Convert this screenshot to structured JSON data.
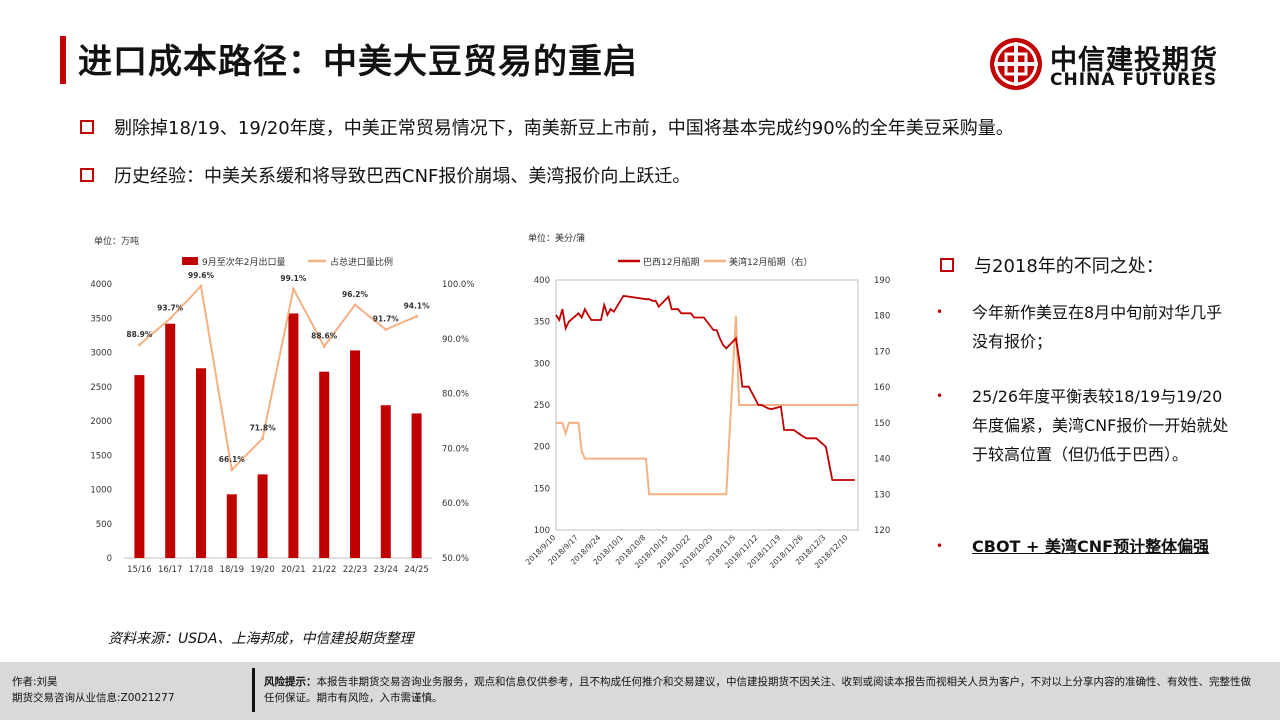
{
  "header": {
    "title": "进口成本路径：中美大豆贸易的重启",
    "logo_cn": "中信建投期货",
    "logo_en": "CHINA FUTURES"
  },
  "bullets": [
    "剔除掉18/19、19/20年度，中美正常贸易情况下，南美新豆上市前，中国将基本完成约90%的全年美豆采购量。",
    "历史经验：中美关系缓和将导致巴西CNF报价崩塌、美湾报价向上跃迁。"
  ],
  "side": {
    "title": "与2018年的不同之处：",
    "items": [
      "今年新作美豆在8月中旬前对华几乎没有报价；",
      "25/26年度平衡表较18/19与19/20年度偏紧，美湾CNF报价一开始就处于较高位置（但仍低于巴西）。",
      "CBOT + 美湾CNF预计整体偏强"
    ]
  },
  "source": "资料来源：USDA、上海邦成，中信建投期货整理",
  "footer": {
    "author": "作者:刘昊",
    "license": "期货交易咨询从业信息:Z0021277",
    "risk_label": "风险提示：",
    "risk_text": "本报告非期货交易咨询业务服务，观点和信息仅供参考，且不构成任何推介和交易建议，中信建投期货不因关注、收到或阅读本报告而视相关人员为客户，不对以上分享内容的准确性、有效性、完整性做任何保证。期市有风险，入市需谨慎。"
  },
  "colors": {
    "accent": "#c00000",
    "line_light": "#f4b183"
  },
  "chart_data": [
    {
      "type": "bar",
      "unit_label": "单位：万吨",
      "categories": [
        "15/16",
        "16/17",
        "17/18",
        "18/19",
        "19/20",
        "20/21",
        "21/22",
        "22/23",
        "23/24",
        "24/25"
      ],
      "series": [
        {
          "name": "9月至次年2月出口量",
          "type": "bar",
          "axis": "left",
          "values": [
            2670,
            3420,
            2770,
            930,
            1220,
            3570,
            2720,
            3030,
            2230,
            2110
          ]
        },
        {
          "name": "占总进口量比例",
          "type": "line",
          "axis": "right",
          "values": [
            88.9,
            93.7,
            99.6,
            66.1,
            71.8,
            99.1,
            88.6,
            96.2,
            91.7,
            94.1
          ],
          "labels": [
            "88.9%",
            "93.7%",
            "99.6%",
            "66.1%",
            "71.8%",
            "99.1%",
            "88.6%",
            "96.2%",
            "91.7%",
            "94.1%"
          ]
        }
      ],
      "ylim": [
        0,
        4000
      ],
      "yticks": [
        "0",
        "500",
        "1000",
        "1500",
        "2000",
        "2500",
        "3000",
        "3500",
        "4000"
      ],
      "y2lim": [
        50,
        100
      ],
      "y2ticks": [
        "50.0%",
        "60.0%",
        "70.0%",
        "80.0%",
        "90.0%",
        "100.0%"
      ],
      "legend_position": "top"
    },
    {
      "type": "line",
      "unit_label": "单位：美分/蒲",
      "xlim": [
        "2018-09-10",
        "2018-12-13"
      ],
      "xticks": [
        "2018/9/10",
        "2018/9/17",
        "2018/9/24",
        "2018/10/1",
        "2018/10/8",
        "2018/10/15",
        "2018/10/22",
        "2018/10/29",
        "2018/11/5",
        "2018/11/12",
        "2018/11/19",
        "2018/11/26",
        "2018/12/3",
        "2018/12/10"
      ],
      "ylim": [
        100,
        400
      ],
      "yticks": [
        "100",
        "150",
        "200",
        "250",
        "300",
        "350",
        "400"
      ],
      "y2lim": [
        120,
        190
      ],
      "y2ticks": [
        "120",
        "130",
        "140",
        "150",
        "160",
        "170",
        "180",
        "190"
      ],
      "legend_position": "top",
      "series": [
        {
          "name": "巴西12月船期",
          "axis": "left",
          "x": [
            "2018-09-10",
            "2018-09-11",
            "2018-09-12",
            "2018-09-13",
            "2018-09-14",
            "2018-09-17",
            "2018-09-18",
            "2018-09-19",
            "2018-09-20",
            "2018-09-21",
            "2018-09-24",
            "2018-09-25",
            "2018-09-26",
            "2018-09-27",
            "2018-09-28",
            "2018-10-01",
            "2018-10-08",
            "2018-10-09",
            "2018-10-10",
            "2018-10-11",
            "2018-10-12",
            "2018-10-15",
            "2018-10-16",
            "2018-10-17",
            "2018-10-18",
            "2018-10-19",
            "2018-10-22",
            "2018-10-23",
            "2018-10-24",
            "2018-10-25",
            "2018-10-26",
            "2018-10-29",
            "2018-10-30",
            "2018-10-31",
            "2018-11-01",
            "2018-11-02",
            "2018-11-05",
            "2018-11-06",
            "2018-11-07",
            "2018-11-08",
            "2018-11-09",
            "2018-11-12",
            "2018-11-13",
            "2018-11-14",
            "2018-11-15",
            "2018-11-16",
            "2018-11-19",
            "2018-11-20",
            "2018-11-21",
            "2018-11-22",
            "2018-11-23",
            "2018-11-26",
            "2018-11-27",
            "2018-11-28",
            "2018-11-29",
            "2018-11-30",
            "2018-12-03",
            "2018-12-04",
            "2018-12-05",
            "2018-12-06",
            "2018-12-07",
            "2018-12-10",
            "2018-12-11",
            "2018-12-12"
          ],
          "values": [
            358,
            352,
            365,
            342,
            350,
            360,
            355,
            365,
            358,
            352,
            352,
            370,
            358,
            365,
            362,
            381,
            377,
            377,
            375,
            375,
            368,
            380,
            365,
            365,
            365,
            360,
            360,
            355,
            355,
            355,
            355,
            340,
            340,
            330,
            322,
            318,
            330,
            305,
            272,
            272,
            272,
            250,
            250,
            248,
            246,
            245,
            248,
            220,
            220,
            220,
            220,
            212,
            210,
            210,
            210,
            210,
            200,
            180,
            160,
            160,
            160,
            160,
            160,
            160
          ]
        },
        {
          "name": "美湾12月船期（右）",
          "axis": "right",
          "x": [
            "2018-09-10",
            "2018-09-12",
            "2018-09-13",
            "2018-09-14",
            "2018-09-17",
            "2018-09-18",
            "2018-09-19",
            "2018-10-05",
            "2018-10-08",
            "2018-10-09",
            "2018-11-01",
            "2018-11-02",
            "2018-11-05",
            "2018-11-06",
            "2018-11-09",
            "2018-12-13"
          ],
          "values": [
            150,
            150,
            147,
            150,
            150,
            142,
            140,
            140,
            140,
            130,
            130,
            130,
            180,
            155,
            155,
            155
          ]
        }
      ]
    }
  ]
}
